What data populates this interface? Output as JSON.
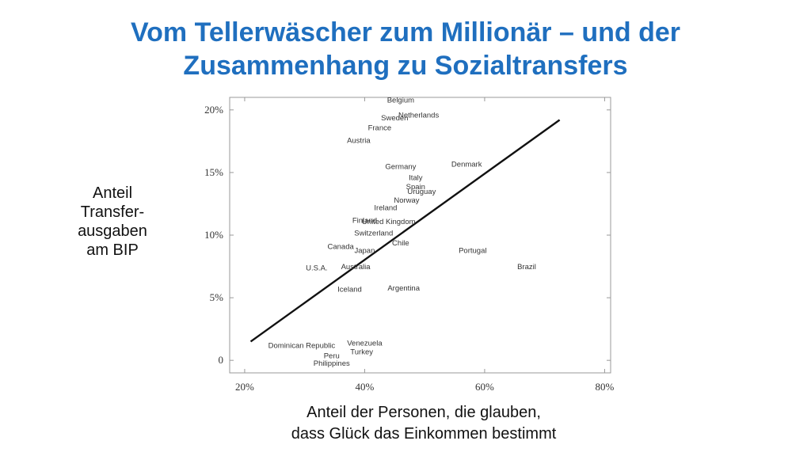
{
  "title": {
    "line1": "Vom Tellerwäscher zum Millionär – und der",
    "line2": "Zusammenhang zu Sozialtransfers"
  },
  "ylabel_lines": [
    "Anteil",
    "Transfer-",
    "ausgaben",
    "am BIP"
  ],
  "xlabel_lines": [
    "Anteil der Personen, die glauben,",
    "dass Glück das Einkommen bestimmt"
  ],
  "chart_data": {
    "type": "scatter",
    "xlabel": "Anteil der Personen, die glauben, dass Glück das Einkommen bestimmt",
    "ylabel": "Anteil Transferausgaben am BIP",
    "xlim": [
      17.5,
      81
    ],
    "ylim": [
      -1,
      21
    ],
    "xticks": [
      20,
      40,
      60,
      80
    ],
    "xtick_labels": [
      "20%",
      "40%",
      "60%",
      "80%"
    ],
    "yticks": [
      0,
      5,
      10,
      15,
      20
    ],
    "ytick_labels": [
      "0",
      "5%",
      "10%",
      "15%",
      "20%"
    ],
    "grid": false,
    "points": [
      {
        "label": "Belgium",
        "x": 46.0,
        "y": 20.8
      },
      {
        "label": "Sweden",
        "x": 45.0,
        "y": 19.4
      },
      {
        "label": "Netherlands",
        "x": 49.0,
        "y": 19.6
      },
      {
        "label": "France",
        "x": 42.5,
        "y": 18.6
      },
      {
        "label": "Austria",
        "x": 39.0,
        "y": 17.6
      },
      {
        "label": "Denmark",
        "x": 57.0,
        "y": 15.7
      },
      {
        "label": "Germany",
        "x": 46.0,
        "y": 15.5
      },
      {
        "label": "Italy",
        "x": 48.5,
        "y": 14.6
      },
      {
        "label": "Spain",
        "x": 48.5,
        "y": 13.9
      },
      {
        "label": "Uruguay",
        "x": 49.5,
        "y": 13.5
      },
      {
        "label": "Norway",
        "x": 47.0,
        "y": 12.8
      },
      {
        "label": "Ireland",
        "x": 43.5,
        "y": 12.2
      },
      {
        "label": "Finland",
        "x": 40.0,
        "y": 11.2
      },
      {
        "label": "United Kingdom",
        "x": 44.0,
        "y": 11.1
      },
      {
        "label": "Switzerland",
        "x": 41.5,
        "y": 10.2
      },
      {
        "label": "Chile",
        "x": 46.0,
        "y": 9.4
      },
      {
        "label": "Portugal",
        "x": 58.0,
        "y": 8.8
      },
      {
        "label": "Canada",
        "x": 36.0,
        "y": 9.1
      },
      {
        "label": "Japan",
        "x": 40.0,
        "y": 8.8
      },
      {
        "label": "Brazil",
        "x": 67.0,
        "y": 7.5
      },
      {
        "label": "U.S.A.",
        "x": 32.0,
        "y": 7.4
      },
      {
        "label": "Australia",
        "x": 38.5,
        "y": 7.5
      },
      {
        "label": "Argentina",
        "x": 46.5,
        "y": 5.8
      },
      {
        "label": "Iceland",
        "x": 37.5,
        "y": 5.7
      },
      {
        "label": "Venezuela",
        "x": 40.0,
        "y": 1.4
      },
      {
        "label": "Dominican Republic",
        "x": 29.5,
        "y": 1.2
      },
      {
        "label": "Turkey",
        "x": 39.5,
        "y": 0.7
      },
      {
        "label": "Peru",
        "x": 34.5,
        "y": 0.4
      },
      {
        "label": "Philippines",
        "x": 34.5,
        "y": -0.2
      }
    ],
    "trendline": {
      "x": [
        21,
        72.5
      ],
      "y": [
        1.5,
        19.2
      ]
    }
  }
}
